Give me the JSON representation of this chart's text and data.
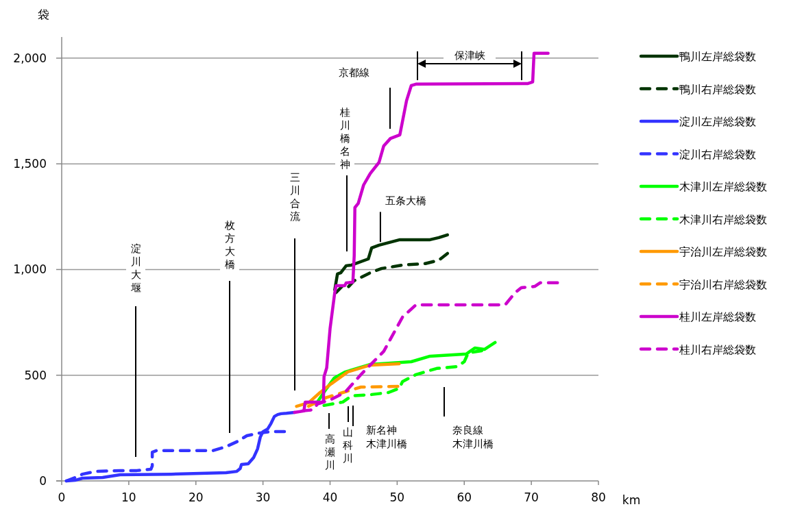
{
  "chart_data": {
    "type": "line",
    "xlabel": "km",
    "ylabel": "袋",
    "xlim": [
      0,
      80
    ],
    "xticks": [
      0,
      10,
      20,
      30,
      40,
      50,
      60,
      70,
      80
    ],
    "ylim": [
      0,
      2100
    ],
    "yticks": [
      0,
      500,
      {
        "value": 1000,
        "label": "1,000"
      },
      {
        "value": 1500,
        "label": "1,500"
      },
      {
        "value": 2000,
        "label": "2,000"
      }
    ],
    "grid": "y",
    "legend": "right",
    "series": [
      {
        "name": "鴨川左岸総袋数",
        "color": "#003300",
        "line_style": "solid",
        "x": [
          40.7,
          41.1,
          41.6,
          42.4,
          43.2,
          45.7,
          46.2,
          47.3,
          50.4,
          54.9,
          56.2,
          57.5
        ],
        "values": [
          904,
          979,
          985,
          1018,
          1021,
          1050,
          1102,
          1115,
          1141,
          1141,
          1151,
          1164
        ]
      },
      {
        "name": "鴨川右岸総袋数",
        "color": "#003300",
        "line_style": "dashed",
        "x": [
          40.9,
          41.9,
          42.6,
          43.6,
          46.0,
          47.7,
          50.8,
          54.2,
          56.2,
          57.5
        ],
        "values": [
          891,
          924,
          914,
          947,
          985,
          1005,
          1021,
          1028,
          1044,
          1076
        ]
      },
      {
        "name": "淀川左岸総袋数",
        "color": "#3333ff",
        "line_style": "solid",
        "x": [
          0.7,
          2.0,
          3.1,
          6.1,
          8.7,
          16.3,
          24.5,
          26.1,
          26.6,
          26.8,
          27.8,
          28.6,
          29.2,
          29.6,
          30.0,
          30.7,
          31.2,
          31.7,
          32.2,
          32.7,
          33.5,
          34.7
        ],
        "values": [
          0,
          3,
          13,
          16,
          29,
          32,
          39,
          45,
          58,
          78,
          81,
          110,
          152,
          207,
          233,
          246,
          272,
          305,
          314,
          318,
          320,
          324
        ]
      },
      {
        "name": "淀川右岸総袋数",
        "color": "#3333ff",
        "line_style": "dashed",
        "x": [
          0.7,
          2.0,
          3.1,
          5.1,
          8.7,
          11.2,
          13.3,
          13.5,
          13.5,
          14.1,
          22.5,
          24.5,
          26.1,
          27.6,
          29.6,
          31.2,
          33.2
        ],
        "values": [
          0,
          16,
          32,
          45,
          49,
          49,
          55,
          71,
          136,
          143,
          143,
          162,
          185,
          214,
          227,
          233,
          233
        ]
      },
      {
        "name": "木津川左岸総袋数",
        "color": "#00ff00",
        "line_style": "solid",
        "x": [
          38.1,
          39.5,
          40.6,
          42.2,
          46.0,
          52.1,
          54.9,
          60.3,
          61.0,
          61.6,
          63.0,
          64.6
        ],
        "values": [
          373,
          438,
          486,
          515,
          551,
          564,
          590,
          600,
          616,
          629,
          622,
          655
        ]
      },
      {
        "name": "木津川右岸総袋数",
        "color": "#00ff00",
        "line_style": "dashed",
        "x": [
          39.1,
          41.9,
          43.2,
          46.0,
          48.7,
          50.3,
          50.8,
          52.8,
          55.9,
          59.0,
          60.0,
          60.6,
          62.6
        ],
        "values": [
          357,
          373,
          402,
          408,
          418,
          438,
          470,
          503,
          532,
          541,
          564,
          606,
          616
        ]
      },
      {
        "name": "宇治川左岸総袋数",
        "color": "#ff9900",
        "line_style": "solid",
        "x": [
          35.0,
          36.8,
          38.5,
          40.2,
          42.6,
          46.0,
          50.3
        ],
        "values": [
          353,
          370,
          418,
          460,
          515,
          548,
          554
        ]
      },
      {
        "name": "宇治川右岸総袋数",
        "color": "#ff9900",
        "line_style": "dashed",
        "x": [
          36.8,
          39.5,
          41.9,
          44.6,
          50.1
        ],
        "values": [
          353,
          395,
          418,
          444,
          447
        ]
      },
      {
        "name": "桂川左岸総袋数",
        "color": "#cc00cc",
        "line_style": "solid",
        "x": [
          34.7,
          36.1,
          36.3,
          39.0,
          39.1,
          39.5,
          40.0,
          40.7,
          40.9,
          42.2,
          42.4,
          43.4,
          43.6,
          43.7,
          44.2,
          45.0,
          46.0,
          47.3,
          48.0,
          49.0,
          50.4,
          51.4,
          52.1,
          52.8,
          69.5,
          70.2,
          70.4,
          72.5
        ],
        "values": [
          324,
          331,
          373,
          373,
          493,
          535,
          720,
          891,
          924,
          924,
          937,
          940,
          1066,
          1293,
          1313,
          1400,
          1455,
          1507,
          1585,
          1620,
          1637,
          1799,
          1870,
          1877,
          1880,
          1887,
          2023,
          2023
        ]
      },
      {
        "name": "桂川右岸総袋数",
        "color": "#cc00cc",
        "line_style": "dashed",
        "x": [
          35.8,
          37.5,
          38.1,
          40.2,
          42.2,
          44.6,
          48.0,
          50.8,
          52.8,
          66.1,
          67.6,
          68.5,
          70.5,
          71.3,
          73.9
        ],
        "values": [
          331,
          337,
          363,
          386,
          418,
          503,
          613,
          775,
          833,
          833,
          891,
          914,
          920,
          937,
          937
        ]
      }
    ],
    "annotations": [
      "淀川大堰",
      "枚方大橋",
      "三川合流",
      "桂川橋名神",
      "京都線",
      {
        "text": "五条大橋",
        "x": 47.5,
        "y": 1130
      },
      "高瀬川",
      "山科川",
      "新名神木津川橋",
      "奈良線木津川橋",
      "保津峡"
    ]
  }
}
